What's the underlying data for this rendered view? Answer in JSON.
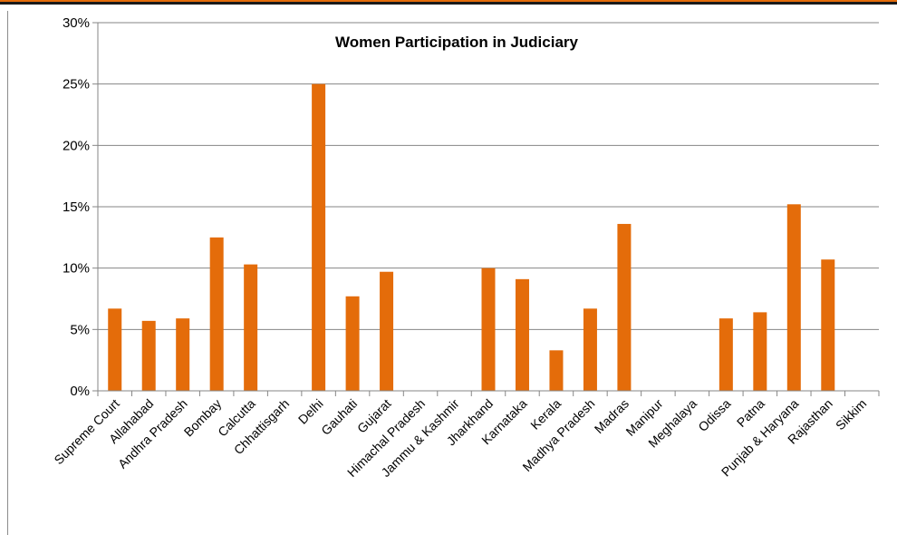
{
  "chart_data": {
    "type": "bar",
    "title": "Women Participation in Judiciary",
    "xlabel": "",
    "ylabel": "",
    "ylim": [
      0,
      30
    ],
    "y_ticks": [
      "0%",
      "5%",
      "10%",
      "15%",
      "20%",
      "25%",
      "30%"
    ],
    "grid": true,
    "legend": "none",
    "categories": [
      "Supreme Court",
      "Allahabad",
      "Andhra Pradesh",
      "Bombay",
      "Calcutta",
      "Chhattisgarh",
      "Delhi",
      "Gauhati",
      "Gujarat",
      "Himachal Pradesh",
      "Jammu & Kashmir",
      "Jharkhand",
      "Karnataka",
      "Kerala",
      "Madhya Pradesh",
      "Madras",
      "Manipur",
      "Meghalaya",
      "Odissa",
      "Patna",
      "Punjab & Haryana",
      "Rajasthan",
      "Sikkim"
    ],
    "values": [
      6.7,
      5.7,
      5.9,
      12.5,
      10.3,
      0,
      25.0,
      7.7,
      9.7,
      0,
      0,
      10.0,
      9.1,
      3.3,
      6.7,
      13.6,
      0,
      0,
      5.9,
      6.4,
      15.2,
      10.7,
      0
    ]
  },
  "colors": {
    "bar": "#e46c0a",
    "grid": "#868686",
    "topbar": "#e46c0a"
  }
}
